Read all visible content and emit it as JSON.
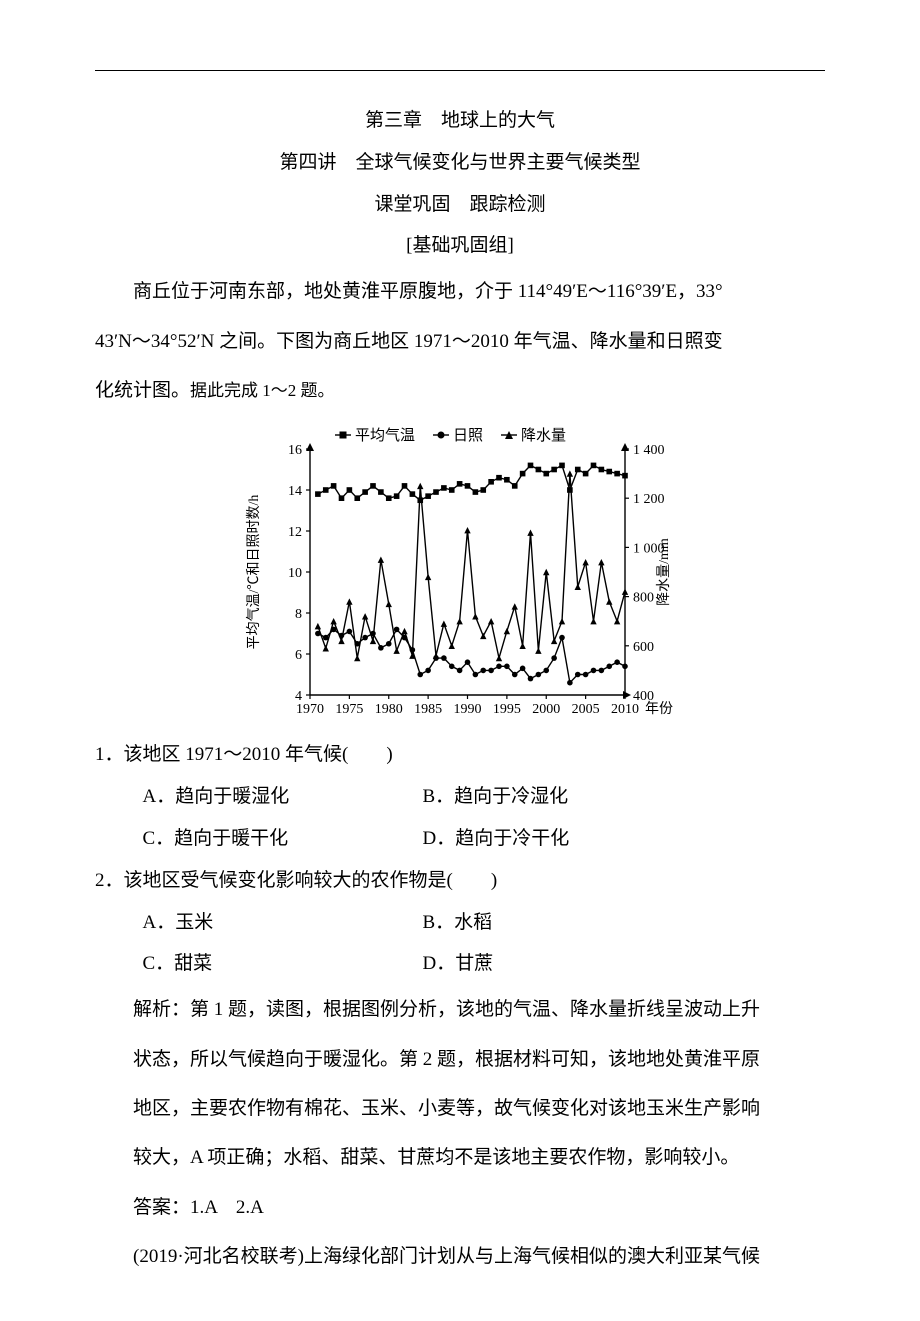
{
  "header": {
    "chapter": "第三章　地球上的大气",
    "lecture": "第四讲　全球气候变化与世界主要气候类型",
    "sub1": "课堂巩固　跟踪检测",
    "sub2": "[基础巩固组]"
  },
  "intro": {
    "p1": "商丘位于河南东部，地处黄淮平原腹地，介于 114°49′E～116°39′E，33°",
    "p2": "43′N～34°52′N 之间。下图为商丘地区 1971～2010 年气温、降水量和日照变",
    "p3_a": "化统计图。",
    "p3_b": "据此完成 1～2 题。"
  },
  "chart": {
    "type": "line",
    "background_color": "#ffffff",
    "axis_color": "#000000",
    "tick_color": "#000000",
    "font_size": 14,
    "title_fontsize": 16,
    "legend_font_size": 15,
    "x": {
      "label": "年份",
      "ticks": [
        1970,
        1975,
        1980,
        1985,
        1990,
        1995,
        2000,
        2005,
        2010
      ]
    },
    "y_left": {
      "label": "平均气温/℃和日照时数/h",
      "ticks": [
        4,
        6,
        8,
        10,
        12,
        14,
        16
      ]
    },
    "y_right": {
      "label": "降水量/mm",
      "ticks": [
        400,
        600,
        800,
        1000,
        1200,
        1400
      ]
    },
    "legend": {
      "items": [
        {
          "label": "平均气温",
          "marker": "square",
          "color": "#000000"
        },
        {
          "label": "日照",
          "marker": "circle",
          "color": "#000000"
        },
        {
          "label": "降水量",
          "marker": "triangle",
          "color": "#000000"
        }
      ]
    },
    "series": [
      {
        "name": "平均气温",
        "axis": "left",
        "marker": "square",
        "color": "#000000",
        "line_width": 1.4,
        "x": [
          1971,
          1972,
          1973,
          1974,
          1975,
          1976,
          1977,
          1978,
          1979,
          1980,
          1981,
          1982,
          1983,
          1984,
          1985,
          1986,
          1987,
          1988,
          1989,
          1990,
          1991,
          1992,
          1993,
          1994,
          1995,
          1996,
          1997,
          1998,
          1999,
          2000,
          2001,
          2002,
          2003,
          2004,
          2005,
          2006,
          2007,
          2008,
          2009,
          2010
        ],
        "y": [
          13.8,
          14.0,
          14.2,
          13.6,
          14.0,
          13.6,
          13.9,
          14.2,
          13.9,
          13.6,
          13.7,
          14.2,
          13.8,
          13.5,
          13.7,
          13.9,
          14.1,
          14.0,
          14.3,
          14.2,
          13.9,
          14.0,
          14.4,
          14.6,
          14.5,
          14.2,
          14.8,
          15.2,
          15.0,
          14.8,
          15.0,
          15.2,
          14.0,
          15.0,
          14.8,
          15.2,
          15.0,
          14.9,
          14.8,
          14.7
        ]
      },
      {
        "name": "日照",
        "axis": "left",
        "marker": "circle",
        "color": "#000000",
        "line_width": 1.4,
        "x": [
          1971,
          1972,
          1973,
          1974,
          1975,
          1976,
          1977,
          1978,
          1979,
          1980,
          1981,
          1982,
          1983,
          1984,
          1985,
          1986,
          1987,
          1988,
          1989,
          1990,
          1991,
          1992,
          1993,
          1994,
          1995,
          1996,
          1997,
          1998,
          1999,
          2000,
          2001,
          2002,
          2003,
          2004,
          2005,
          2006,
          2007,
          2008,
          2009,
          2010
        ],
        "y": [
          7.0,
          6.8,
          7.2,
          6.9,
          7.1,
          6.5,
          6.8,
          7.0,
          6.3,
          6.5,
          7.2,
          6.8,
          6.2,
          5.0,
          5.2,
          5.8,
          5.8,
          5.4,
          5.2,
          5.6,
          5.0,
          5.2,
          5.2,
          5.4,
          5.4,
          5.0,
          5.3,
          4.8,
          5.0,
          5.2,
          5.8,
          6.8,
          4.6,
          5.0,
          5.0,
          5.2,
          5.2,
          5.4,
          5.6,
          5.4
        ]
      },
      {
        "name": "降水量",
        "axis": "right",
        "marker": "triangle",
        "color": "#000000",
        "line_width": 1.4,
        "x": [
          1971,
          1972,
          1973,
          1974,
          1975,
          1976,
          1977,
          1978,
          1979,
          1980,
          1981,
          1982,
          1983,
          1984,
          1985,
          1986,
          1987,
          1988,
          1989,
          1990,
          1991,
          1992,
          1993,
          1994,
          1995,
          1996,
          1997,
          1998,
          1999,
          2000,
          2001,
          2002,
          2003,
          2004,
          2005,
          2006,
          2007,
          2008,
          2009,
          2010
        ],
        "y": [
          680,
          590,
          700,
          620,
          780,
          550,
          720,
          620,
          950,
          770,
          580,
          660,
          560,
          1250,
          880,
          560,
          690,
          600,
          700,
          1070,
          720,
          640,
          700,
          550,
          660,
          760,
          600,
          1060,
          580,
          900,
          620,
          700,
          1300,
          840,
          940,
          700,
          940,
          780,
          700,
          820
        ]
      }
    ]
  },
  "q1": {
    "stem": "1．该地区 1971～2010 年气候(　　)",
    "A": "A．趋向于暖湿化",
    "B": "B．趋向于冷湿化",
    "C": "C．趋向于暖干化",
    "D": "D．趋向于冷干化"
  },
  "q2": {
    "stem": "2．该地区受气候变化影响较大的农作物是(　　)",
    "A": "A．玉米",
    "B": "B．水稻",
    "C": "C．甜菜",
    "D": "D．甘蔗"
  },
  "explain": {
    "p1": "解析：第 1 题，读图，根据图例分析，该地的气温、降水量折线呈波动上升",
    "p2": "状态，所以气候趋向于暖湿化。第 2 题，根据材料可知，该地地处黄淮平原",
    "p3": "地区，主要农作物有棉花、玉米、小麦等，故气候变化对该地玉米生产影响",
    "p4": "较大，A 项正确；水稻、甜菜、甘蔗均不是该地主要农作物，影响较小。"
  },
  "answer": "答案：1.A　2.A",
  "next": "(2019·河北名校联考)上海绿化部门计划从与上海气候相似的澳大利亚某气候"
}
